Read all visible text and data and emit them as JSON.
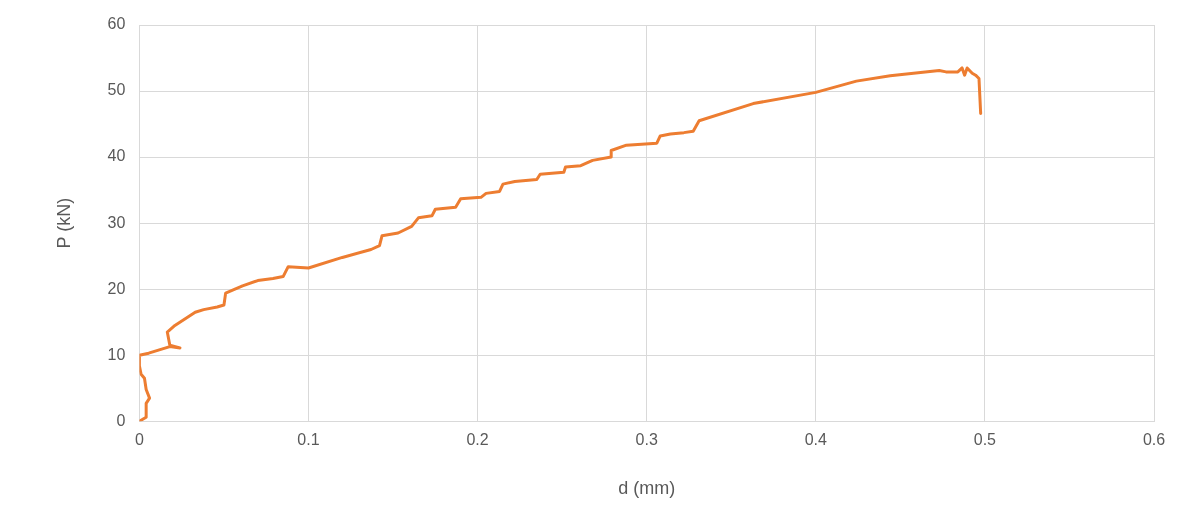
{
  "chart_data": {
    "type": "line",
    "xlabel": "d (mm)",
    "ylabel": "P (kN)",
    "xlim": [
      0,
      0.6
    ],
    "xticks": [
      0,
      0.1,
      0.2,
      0.3,
      0.4,
      0.5,
      0.6
    ],
    "ylim": [
      0,
      60
    ],
    "yticks": [
      0,
      10,
      20,
      30,
      40,
      50,
      60
    ],
    "grid": true,
    "legend": false,
    "marker": "none",
    "line_style": "solid",
    "series": [
      {
        "color": "#ed7d31",
        "x": [
          0,
          0.004,
          0.004,
          0.006,
          0.004,
          0.003,
          0.001,
          0,
          0,
          0.0055,
          0.018,
          0.024,
          0.018,
          0.0165,
          0.021,
          0.033,
          0.038,
          0.046,
          0.05,
          0.051,
          0.061,
          0.07,
          0.079,
          0.085,
          0.088,
          0.1,
          0.12,
          0.137,
          0.142,
          0.1435,
          0.153,
          0.161,
          0.165,
          0.173,
          0.175,
          0.187,
          0.19,
          0.202,
          0.205,
          0.213,
          0.215,
          0.222,
          0.235,
          0.237,
          0.251,
          0.252,
          0.261,
          0.268,
          0.279,
          0.279,
          0.288,
          0.306,
          0.308,
          0.314,
          0.322,
          0.3275,
          0.331,
          0.363,
          0.4,
          0.424,
          0.444,
          0.473,
          0.477,
          0.484,
          0.4865,
          0.488,
          0.4895,
          0.4925,
          0.4945,
          0.4965,
          0.4975
        ],
        "values": [
          0,
          0.6,
          2.7,
          3.5,
          4.8,
          6.5,
          7.1,
          8.4,
          10,
          10.3,
          11.3,
          11.1,
          11.5,
          13.5,
          14.5,
          16.5,
          16.9,
          17.3,
          17.6,
          19.4,
          20.5,
          21.3,
          21.6,
          21.9,
          23.4,
          23.2,
          24.8,
          26.0,
          26.6,
          28.1,
          28.5,
          29.5,
          30.8,
          31.1,
          32.1,
          32.4,
          33.7,
          33.9,
          34.5,
          34.8,
          35.9,
          36.3,
          36.6,
          37.4,
          37.7,
          38.5,
          38.7,
          39.5,
          40.0,
          41.0,
          41.8,
          42.1,
          43.2,
          43.5,
          43.7,
          43.9,
          45.5,
          48.1,
          49.8,
          51.5,
          52.3,
          53.1,
          52.9,
          52.9,
          53.5,
          52.4,
          53.5,
          52.7,
          52.4,
          51.9,
          46.6
        ]
      }
    ]
  }
}
